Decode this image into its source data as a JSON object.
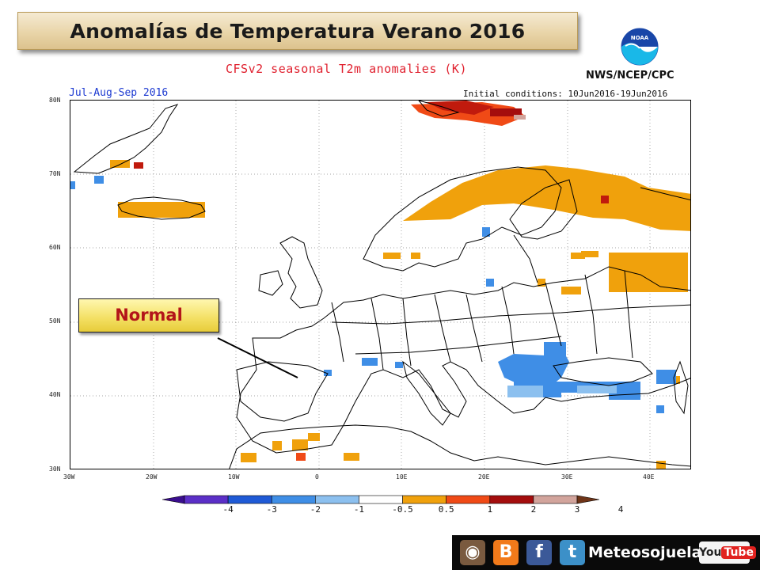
{
  "banner": {
    "title": "Anomalías de Temperatura Verano 2016"
  },
  "header": {
    "subtitle": "CFSv2 seasonal T2m anomalies (K)",
    "agency": "NWS/NCEP/CPC",
    "season": "Jul-Aug-Sep 2016",
    "initial_conditions": "Initial conditions: 10Jun2016-19Jun2016"
  },
  "axes": {
    "lat_labels": [
      "80N",
      "70N",
      "60N",
      "50N",
      "40N",
      "30N"
    ],
    "lon_labels": [
      "30W",
      "20W",
      "10W",
      "0",
      "10E",
      "20E",
      "30E",
      "40E"
    ]
  },
  "callout": {
    "label": "Normal"
  },
  "legend": {
    "labels": [
      "-4",
      "-3",
      "-2",
      "-1",
      "-0.5",
      "0.5",
      "1",
      "2",
      "3",
      "4"
    ],
    "colors": [
      "#3a0e8e",
      "#5b2fc7",
      "#1f5ad6",
      "#3f8ee6",
      "#8cc0ef",
      "#ffffff",
      "#f0a10c",
      "#f04a16",
      "#a40d0d",
      "#d2a49c",
      "#6e3418"
    ]
  },
  "footer": {
    "brand": "Meteosojuela",
    "youtube_label_a": "You",
    "youtube_label_b": "Tube",
    "icons": [
      "instagram-icon",
      "blogger-icon",
      "facebook-icon",
      "tumblr-icon"
    ]
  }
}
